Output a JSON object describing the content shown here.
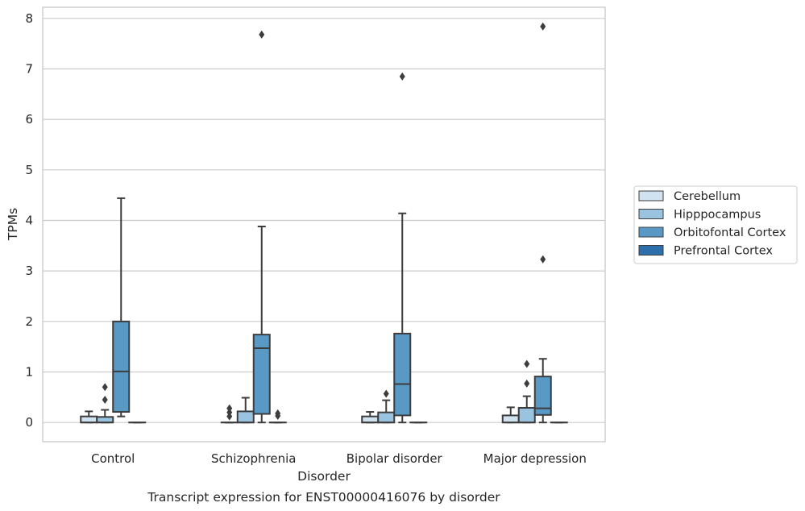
{
  "chart_data": {
    "type": "boxplot",
    "title": "Transcript expression for ENST00000416076 by disorder",
    "xlabel": "Disorder",
    "ylabel": "TPMs",
    "ylim": [
      -0.38,
      8.22
    ],
    "yticks": [
      0,
      1,
      2,
      3,
      4,
      5,
      6,
      7,
      8
    ],
    "grid": true,
    "legend_position": "right",
    "categories": [
      "Control",
      "Schizophrenia",
      "Bipolar disorder",
      "Major depression"
    ],
    "series": [
      {
        "name": "Cerebellum",
        "color": "#d0e1f0",
        "boxes": [
          {
            "q1": 0,
            "median": 0,
            "q3": 0.12,
            "whislo": 0,
            "whishi": 0.22,
            "fliers": []
          },
          {
            "q1": 0,
            "median": 0,
            "q3": 0,
            "whislo": 0,
            "whishi": 0,
            "fliers": [
              0.12,
              0.2,
              0.28
            ]
          },
          {
            "q1": 0,
            "median": 0,
            "q3": 0.12,
            "whislo": 0,
            "whishi": 0.21,
            "fliers": []
          },
          {
            "q1": 0,
            "median": 0,
            "q3": 0.14,
            "whislo": 0,
            "whishi": 0.3,
            "fliers": []
          }
        ]
      },
      {
        "name": "Hipppocampus",
        "color": "#9ac3df",
        "boxes": [
          {
            "q1": 0,
            "median": 0,
            "q3": 0.11,
            "whislo": 0,
            "whishi": 0.25,
            "fliers": [
              0.45,
              0.7
            ]
          },
          {
            "q1": 0,
            "median": 0,
            "q3": 0.22,
            "whislo": 0,
            "whishi": 0.49,
            "fliers": []
          },
          {
            "q1": 0,
            "median": 0,
            "q3": 0.2,
            "whislo": 0,
            "whishi": 0.44,
            "fliers": [
              0.57
            ]
          },
          {
            "q1": 0,
            "median": 0,
            "q3": 0.29,
            "whislo": 0,
            "whishi": 0.52,
            "fliers": [
              0.77,
              1.16
            ]
          }
        ]
      },
      {
        "name": "Orbitofontal Cortex",
        "color": "#5899c6",
        "boxes": [
          {
            "q1": 0.21,
            "median": 1.01,
            "q3": 2.0,
            "whislo": 0.12,
            "whishi": 4.44,
            "fliers": []
          },
          {
            "q1": 0.17,
            "median": 1.47,
            "q3": 1.74,
            "whislo": 0,
            "whishi": 3.88,
            "fliers": [
              7.68
            ]
          },
          {
            "q1": 0.14,
            "median": 0.76,
            "q3": 1.76,
            "whislo": 0,
            "whishi": 4.14,
            "fliers": [
              6.85
            ]
          },
          {
            "q1": 0.15,
            "median": 0.28,
            "q3": 0.91,
            "whislo": 0,
            "whishi": 1.26,
            "fliers": [
              3.23,
              7.84
            ]
          }
        ]
      },
      {
        "name": "Prefrontal Cortex",
        "color": "#2c6fab",
        "boxes": [
          {
            "q1": 0,
            "median": 0,
            "q3": 0,
            "whislo": 0,
            "whishi": 0,
            "fliers": []
          },
          {
            "q1": 0,
            "median": 0,
            "q3": 0,
            "whislo": 0,
            "whishi": 0,
            "fliers": [
              0.13,
              0.18
            ]
          },
          {
            "q1": 0,
            "median": 0,
            "q3": 0,
            "whislo": 0,
            "whishi": 0,
            "fliers": []
          },
          {
            "q1": 0,
            "median": 0,
            "q3": 0,
            "whislo": 0,
            "whishi": 0,
            "fliers": []
          }
        ]
      }
    ]
  }
}
